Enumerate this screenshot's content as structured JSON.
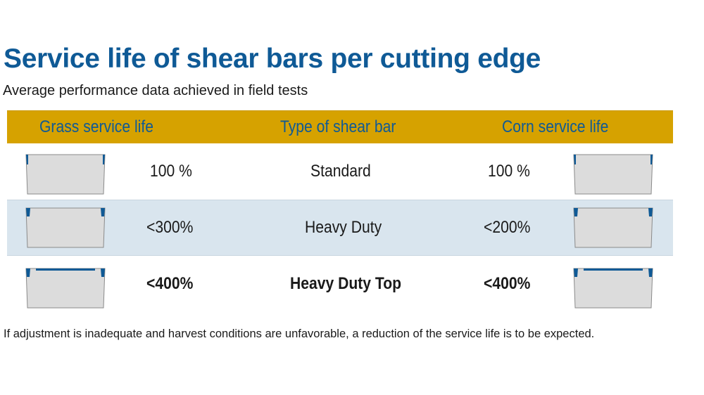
{
  "title": "Service life of shear bars per cutting edge",
  "subtitle": "Average performance data achieved in field tests",
  "table": {
    "headers": {
      "grass": "Grass service life",
      "type": "Type of shear bar",
      "corn": "Corn service life"
    },
    "rows": [
      {
        "grass": "100 %",
        "type": "Standard",
        "corn": "100 %",
        "bold": false
      },
      {
        "grass": "<300%",
        "type": "Heavy Duty",
        "corn": "<200%",
        "bold": false
      },
      {
        "grass": "<400%",
        "type": "Heavy Duty Top",
        "corn": "<400%",
        "bold": true
      }
    ]
  },
  "colors": {
    "title": "#0f5a96",
    "header_bg": "#d6a200",
    "header_text": "#0f5a96",
    "highlight_row": "#d9e5ee",
    "bar_fill": "#dcdcdc",
    "bar_edge": "#0f5a96"
  },
  "icons": {
    "bar_standard": "shear-bar-standard-icon",
    "bar_heavy_duty": "shear-bar-heavy-duty-icon",
    "bar_heavy_duty_top": "shear-bar-heavy-duty-top-icon"
  },
  "footnote": "If adjustment is inadequate and harvest conditions are unfavorable, a reduction of the service life is to be expected."
}
